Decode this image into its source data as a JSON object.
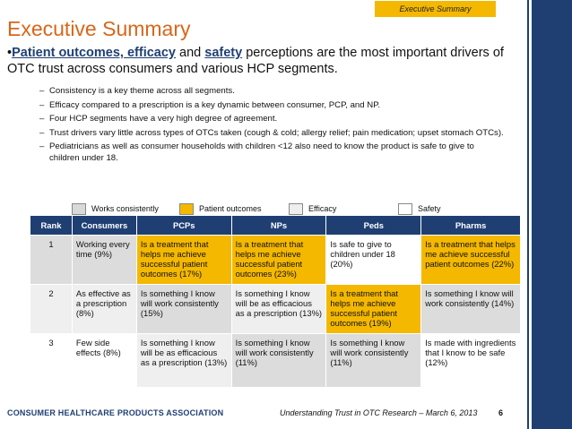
{
  "header": {
    "section_tag": "Executive Summary",
    "title": "Executive Summary"
  },
  "bullet": {
    "part1": "Patient outcomes, efficacy",
    "part2": " and ",
    "part3": "safety",
    "part4": " perceptions are the most important drivers of OTC trust across consumers and various HCP segments."
  },
  "sub_bullets": [
    "Consistency is a key theme across all segments.",
    "Efficacy compared to a prescription is a key dynamic between consumer, PCP, and NP.",
    "Four HCP segments have a very high degree of agreement.",
    "Trust drivers vary little across types of OTCs taken (cough & cold; allergy relief; pain medication; upset stomach OTCs).",
    "Pediatricians as well as consumer households with children <12 also need to know the product is safe to give to children under 18."
  ],
  "legend": [
    {
      "label": "Works consistently",
      "color": "#d9d9d9"
    },
    {
      "label": "Patient outcomes",
      "color": "#f4b800"
    },
    {
      "label": "Efficacy",
      "color": "#eeeeee"
    },
    {
      "label": "Safety",
      "color": "#ffffff"
    }
  ],
  "table": {
    "headers": [
      "Rank",
      "Consumers",
      "PCPs",
      "NPs",
      "Peds",
      "Pharms"
    ],
    "rows": [
      {
        "rank": "1",
        "cells": [
          "Working every time (9%)",
          "Is a treatment that helps me achieve successful patient outcomes (17%)",
          "Is a treatment that helps me achieve successful patient outcomes (23%)",
          "Is safe to give to children under 18 (20%)",
          "Is a treatment that helps me achieve successful patient outcomes (22%)"
        ]
      },
      {
        "rank": "2",
        "cells": [
          "As effective as a prescription (8%)",
          "Is something I know will work consistently (15%)",
          "Is something I know will be as efficacious as a prescription (13%)",
          "Is a treatment that helps me achieve successful patient outcomes (19%)",
          "Is something I know will work consistently (14%)"
        ]
      },
      {
        "rank": "3",
        "cells": [
          "Few side effects (8%)",
          "Is something I know will be as efficacious as a prescription (13%)",
          "Is something I know will work consistently (11%)",
          "Is something I know will work consistently (11%)",
          "Is made with ingredients that I know to be safe (12%)"
        ]
      }
    ]
  },
  "footer": {
    "org": "CONSUMER HEALTHCARE PRODUCTS ASSOCIATION",
    "reference": "Understanding Trust in OTC Research – March 6, 2013",
    "page": "6"
  }
}
